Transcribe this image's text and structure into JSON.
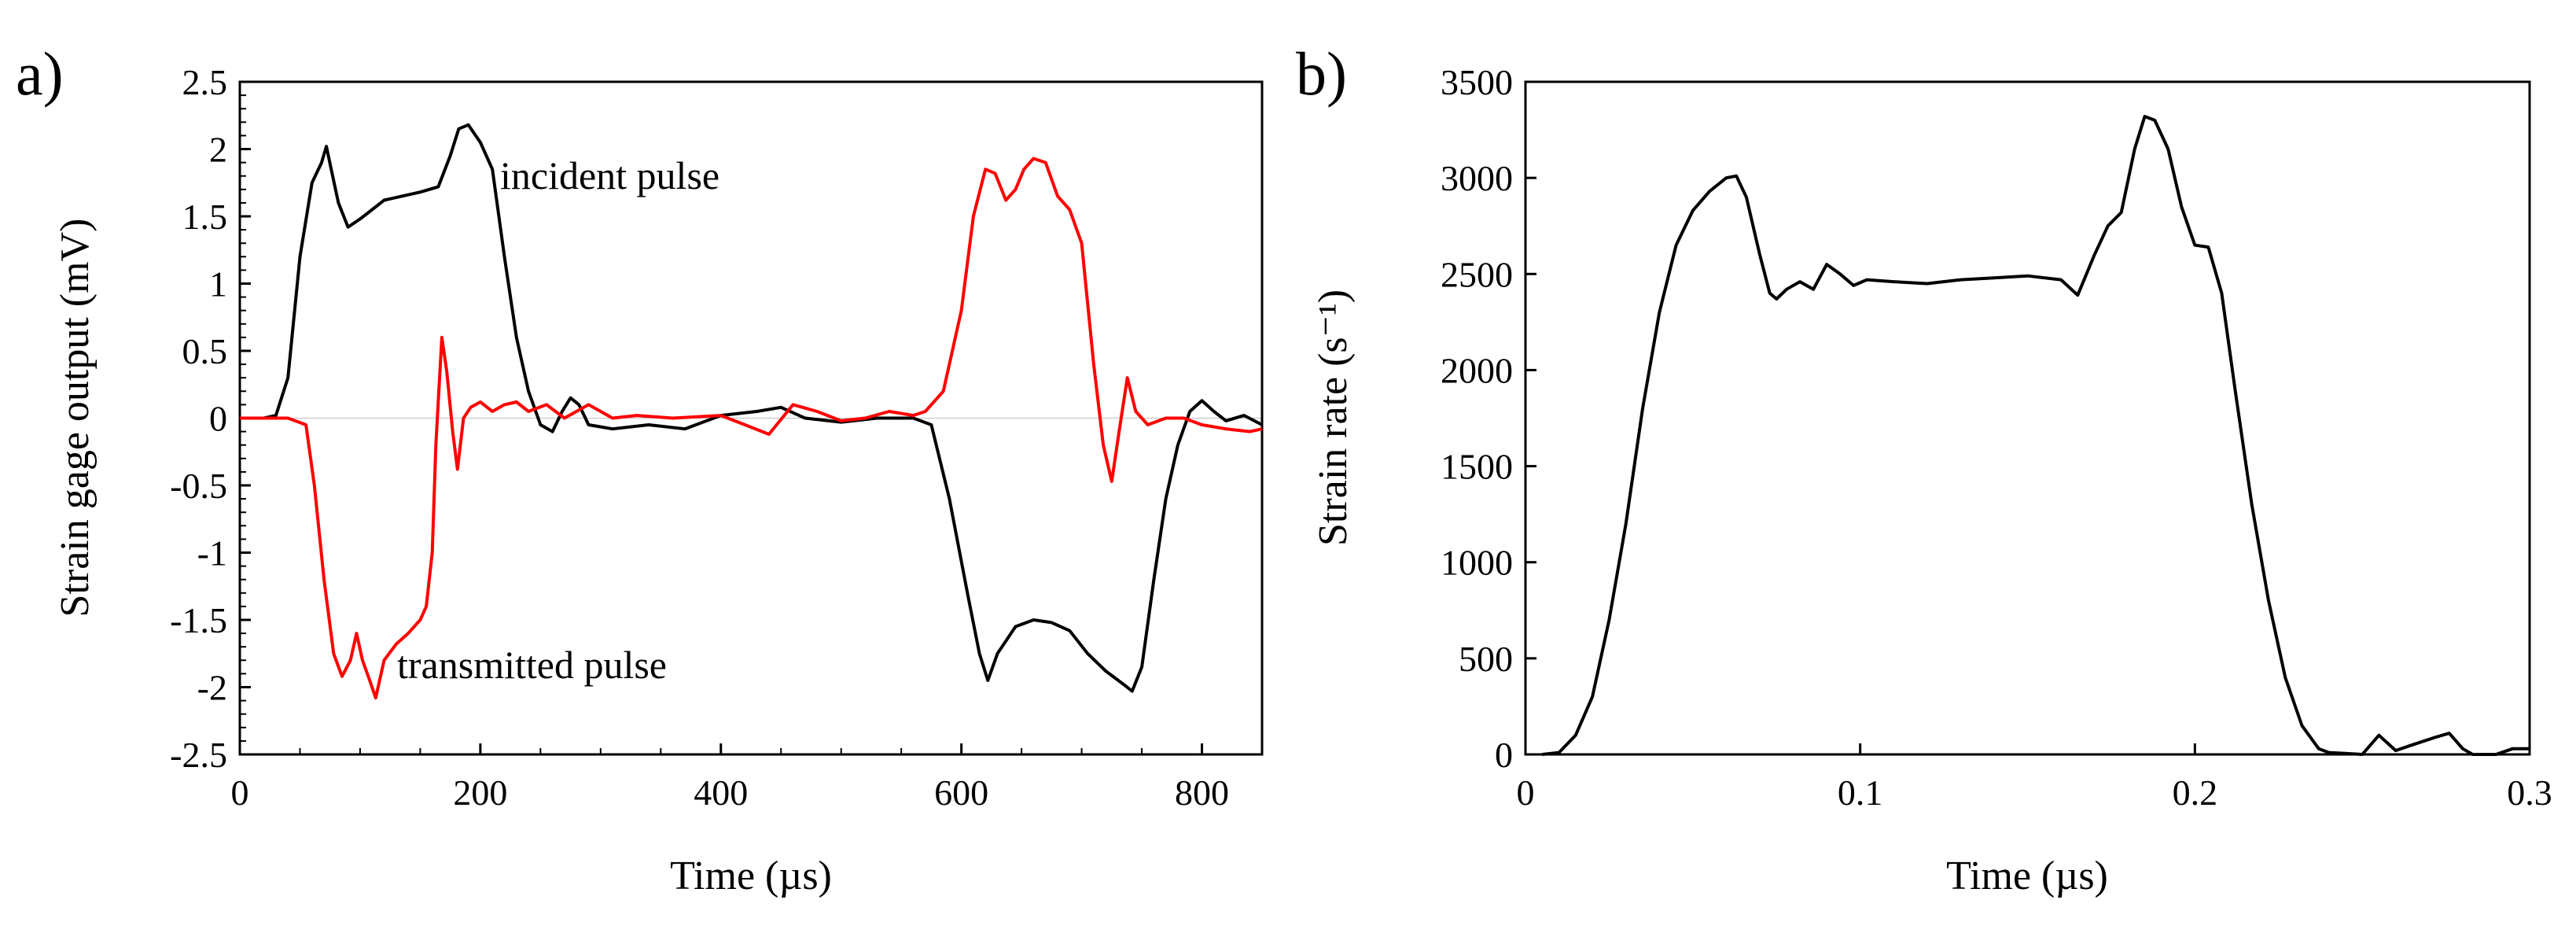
{
  "chart_data": [
    {
      "panel_label": "a)",
      "type": "line",
      "xlabel": "Time (µs)",
      "ylabel": "Strain gage output (mV)",
      "xlim": [
        0,
        850
      ],
      "ylim": [
        -2.5,
        2.5
      ],
      "x_ticks": [
        0,
        200,
        400,
        600,
        800
      ],
      "x_tick_labels": [
        "0",
        "200",
        "400",
        "600",
        "800"
      ],
      "y_ticks": [
        -2.5,
        -2,
        -1.5,
        -1,
        -0.5,
        0,
        0.5,
        1,
        1.5,
        2,
        2.5
      ],
      "y_tick_labels": [
        "-2.5",
        "-2",
        "-1.5",
        "-1",
        "-0.5",
        "0",
        "0.5",
        "1",
        "1.5",
        "2",
        "2.5"
      ],
      "grid": false,
      "annotations": [
        {
          "text": "incident pulse",
          "x": 220,
          "y": 1.8
        },
        {
          "text": "transmitted pulse",
          "x": 130,
          "y": -1.85
        }
      ],
      "series": [
        {
          "name": "incident pulse",
          "color": "#000000",
          "points": [
            [
              0,
              0
            ],
            [
              20,
              0
            ],
            [
              30,
              0.02
            ],
            [
              40,
              0.3
            ],
            [
              50,
              1.2
            ],
            [
              60,
              1.75
            ],
            [
              68,
              1.9
            ],
            [
              72,
              2.02
            ],
            [
              76,
              1.85
            ],
            [
              82,
              1.6
            ],
            [
              90,
              1.42
            ],
            [
              100,
              1.48
            ],
            [
              110,
              1.55
            ],
            [
              120,
              1.62
            ],
            [
              135,
              1.65
            ],
            [
              150,
              1.68
            ],
            [
              165,
              1.72
            ],
            [
              175,
              1.95
            ],
            [
              182,
              2.15
            ],
            [
              190,
              2.18
            ],
            [
              200,
              2.05
            ],
            [
              210,
              1.85
            ],
            [
              220,
              1.2
            ],
            [
              230,
              0.6
            ],
            [
              240,
              0.2
            ],
            [
              250,
              -0.05
            ],
            [
              260,
              -0.1
            ],
            [
              268,
              0.05
            ],
            [
              275,
              0.15
            ],
            [
              282,
              0.1
            ],
            [
              290,
              -0.05
            ],
            [
              310,
              -0.08
            ],
            [
              340,
              -0.05
            ],
            [
              370,
              -0.08
            ],
            [
              400,
              0.02
            ],
            [
              430,
              0.05
            ],
            [
              450,
              0.08
            ],
            [
              470,
              0
            ],
            [
              500,
              -0.03
            ],
            [
              530,
              0
            ],
            [
              560,
              0
            ],
            [
              575,
              -0.05
            ],
            [
              590,
              -0.6
            ],
            [
              605,
              -1.3
            ],
            [
              615,
              -1.75
            ],
            [
              622,
              -1.95
            ],
            [
              630,
              -1.75
            ],
            [
              645,
              -1.55
            ],
            [
              660,
              -1.5
            ],
            [
              675,
              -1.52
            ],
            [
              690,
              -1.58
            ],
            [
              705,
              -1.75
            ],
            [
              720,
              -1.88
            ],
            [
              735,
              -1.98
            ],
            [
              742,
              -2.03
            ],
            [
              750,
              -1.85
            ],
            [
              760,
              -1.2
            ],
            [
              770,
              -0.6
            ],
            [
              780,
              -0.2
            ],
            [
              790,
              0.05
            ],
            [
              800,
              0.13
            ],
            [
              810,
              0.05
            ],
            [
              820,
              -0.02
            ],
            [
              835,
              0.02
            ],
            [
              850,
              -0.05
            ]
          ]
        },
        {
          "name": "transmitted pulse",
          "color": "#ff0000",
          "points": [
            [
              0,
              0
            ],
            [
              40,
              0
            ],
            [
              55,
              -0.05
            ],
            [
              62,
              -0.5
            ],
            [
              70,
              -1.2
            ],
            [
              78,
              -1.75
            ],
            [
              85,
              -1.92
            ],
            [
              92,
              -1.8
            ],
            [
              97,
              -1.6
            ],
            [
              102,
              -1.8
            ],
            [
              108,
              -1.95
            ],
            [
              113,
              -2.08
            ],
            [
              120,
              -1.8
            ],
            [
              130,
              -1.68
            ],
            [
              140,
              -1.6
            ],
            [
              150,
              -1.5
            ],
            [
              155,
              -1.4
            ],
            [
              160,
              -1.0
            ],
            [
              163,
              -0.2
            ],
            [
              168,
              0.6
            ],
            [
              172,
              0.35
            ],
            [
              177,
              -0.1
            ],
            [
              181,
              -0.38
            ],
            [
              186,
              0.0
            ],
            [
              192,
              0.08
            ],
            [
              200,
              0.12
            ],
            [
              210,
              0.05
            ],
            [
              220,
              0.1
            ],
            [
              230,
              0.12
            ],
            [
              240,
              0.05
            ],
            [
              255,
              0.1
            ],
            [
              270,
              0
            ],
            [
              290,
              0.1
            ],
            [
              310,
              0
            ],
            [
              330,
              0.02
            ],
            [
              360,
              0
            ],
            [
              400,
              0.02
            ],
            [
              420,
              -0.05
            ],
            [
              440,
              -0.12
            ],
            [
              460,
              0.1
            ],
            [
              480,
              0.05
            ],
            [
              500,
              -0.02
            ],
            [
              520,
              0
            ],
            [
              540,
              0.05
            ],
            [
              560,
              0.02
            ],
            [
              570,
              0.05
            ],
            [
              585,
              0.2
            ],
            [
              600,
              0.8
            ],
            [
              610,
              1.5
            ],
            [
              620,
              1.85
            ],
            [
              628,
              1.82
            ],
            [
              637,
              1.62
            ],
            [
              645,
              1.7
            ],
            [
              652,
              1.85
            ],
            [
              660,
              1.93
            ],
            [
              670,
              1.9
            ],
            [
              680,
              1.65
            ],
            [
              690,
              1.55
            ],
            [
              700,
              1.3
            ],
            [
              710,
              0.4
            ],
            [
              718,
              -0.2
            ],
            [
              725,
              -0.47
            ],
            [
              732,
              -0.05
            ],
            [
              738,
              0.3
            ],
            [
              745,
              0.05
            ],
            [
              755,
              -0.05
            ],
            [
              770,
              0
            ],
            [
              785,
              0
            ],
            [
              800,
              -0.05
            ],
            [
              820,
              -0.08
            ],
            [
              840,
              -0.1
            ],
            [
              850,
              -0.08
            ]
          ]
        }
      ]
    },
    {
      "panel_label": "b)",
      "type": "line",
      "xlabel": "Time (µs)",
      "ylabel": "Strain rate (s⁻¹)",
      "xlim": [
        0,
        0.3
      ],
      "ylim": [
        0,
        3500
      ],
      "x_ticks": [
        0,
        0.1,
        0.2,
        0.3
      ],
      "x_tick_labels": [
        "0",
        "0.1",
        "0.2",
        "0.3"
      ],
      "y_ticks": [
        0,
        500,
        1000,
        1500,
        2000,
        2500,
        3000,
        3500
      ],
      "y_tick_labels": [
        "0",
        "500",
        "1000",
        "1500",
        "2000",
        "2500",
        "3000",
        "3500"
      ],
      "grid": false,
      "series": [
        {
          "name": "strain rate",
          "color": "#000000",
          "points": [
            [
              0.005,
              0
            ],
            [
              0.01,
              10
            ],
            [
              0.015,
              100
            ],
            [
              0.02,
              300
            ],
            [
              0.025,
              700
            ],
            [
              0.03,
              1200
            ],
            [
              0.035,
              1800
            ],
            [
              0.04,
              2300
            ],
            [
              0.045,
              2650
            ],
            [
              0.05,
              2830
            ],
            [
              0.055,
              2930
            ],
            [
              0.06,
              3000
            ],
            [
              0.063,
              3010
            ],
            [
              0.066,
              2900
            ],
            [
              0.07,
              2600
            ],
            [
              0.073,
              2400
            ],
            [
              0.075,
              2370
            ],
            [
              0.078,
              2420
            ],
            [
              0.082,
              2460
            ],
            [
              0.086,
              2420
            ],
            [
              0.09,
              2550
            ],
            [
              0.094,
              2500
            ],
            [
              0.098,
              2440
            ],
            [
              0.102,
              2470
            ],
            [
              0.11,
              2460
            ],
            [
              0.12,
              2450
            ],
            [
              0.13,
              2470
            ],
            [
              0.14,
              2480
            ],
            [
              0.15,
              2490
            ],
            [
              0.16,
              2470
            ],
            [
              0.165,
              2390
            ],
            [
              0.17,
              2600
            ],
            [
              0.174,
              2750
            ],
            [
              0.178,
              2820
            ],
            [
              0.182,
              3150
            ],
            [
              0.185,
              3320
            ],
            [
              0.188,
              3300
            ],
            [
              0.192,
              3150
            ],
            [
              0.196,
              2850
            ],
            [
              0.2,
              2650
            ],
            [
              0.204,
              2640
            ],
            [
              0.208,
              2400
            ],
            [
              0.212,
              1900
            ],
            [
              0.217,
              1300
            ],
            [
              0.222,
              800
            ],
            [
              0.227,
              400
            ],
            [
              0.232,
              150
            ],
            [
              0.237,
              30
            ],
            [
              0.24,
              10
            ],
            [
              0.245,
              5
            ],
            [
              0.25,
              0
            ],
            [
              0.255,
              100
            ],
            [
              0.26,
              20
            ],
            [
              0.265,
              50
            ],
            [
              0.272,
              90
            ],
            [
              0.276,
              110
            ],
            [
              0.28,
              30
            ],
            [
              0.283,
              0
            ],
            [
              0.29,
              0
            ],
            [
              0.295,
              30
            ],
            [
              0.3,
              30
            ]
          ]
        }
      ]
    }
  ]
}
